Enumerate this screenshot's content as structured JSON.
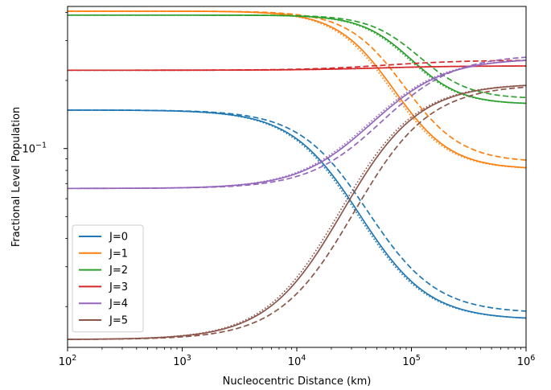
{
  "chart_data": {
    "type": "line",
    "xlabel": "Nucleocentric Distance (km)",
    "ylabel": "Fractional Level Population",
    "xscale": "log",
    "yscale": "log",
    "xlim": [
      100,
      1000000
    ],
    "ylim": [
      0.0132,
      0.425
    ],
    "x_ticks": [
      {
        "value": 100,
        "base": "10",
        "exp": "2"
      },
      {
        "value": 1000,
        "base": "10",
        "exp": "3"
      },
      {
        "value": 10000,
        "base": "10",
        "exp": "4"
      },
      {
        "value": 100000,
        "base": "10",
        "exp": "5"
      },
      {
        "value": 1000000,
        "base": "10",
        "exp": "6"
      }
    ],
    "y_ticks": [
      {
        "value": 0.1,
        "base": "10",
        "exp": "−1"
      }
    ],
    "legend": {
      "position": "lower-left"
    },
    "linestyles_note_hidden": true,
    "series": [
      {
        "name": "J=0",
        "color": "#1f77b4",
        "start": 0.148,
        "solid_end": 0.0175,
        "dashed_end": 0.0187,
        "x_mid_log": 4.55,
        "width": 0.3,
        "dashed_shift": 0.07
      },
      {
        "name": "J=1",
        "color": "#ff7f0e",
        "start": 0.405,
        "solid_end": 0.081,
        "dashed_end": 0.087,
        "x_mid_log": 4.85,
        "width": 0.25,
        "dashed_shift": 0.09
      },
      {
        "name": "J=2",
        "color": "#2ca02c",
        "start": 0.389,
        "solid_end": 0.157,
        "dashed_end": 0.166,
        "x_mid_log": 5.0,
        "width": 0.22,
        "dashed_shift": 0.07
      },
      {
        "name": "J=3",
        "color": "#d62728",
        "start": 0.222,
        "solid_end": 0.232,
        "dashed_end": 0.246,
        "x_mid_log": 4.7,
        "width": 0.35,
        "dashed_shift": 0.07
      },
      {
        "name": "J=4",
        "color": "#9467bd",
        "start": 0.0666,
        "solid_end": 0.25,
        "dashed_end": 0.26,
        "x_mid_log": 4.65,
        "width": 0.32,
        "dashed_shift": 0.09
      },
      {
        "name": "J=5",
        "color": "#8c564b",
        "start": 0.0143,
        "solid_end": 0.194,
        "dashed_end": 0.192,
        "x_mid_log": 4.4,
        "width": 0.33,
        "dashed_shift": 0.1
      }
    ]
  }
}
